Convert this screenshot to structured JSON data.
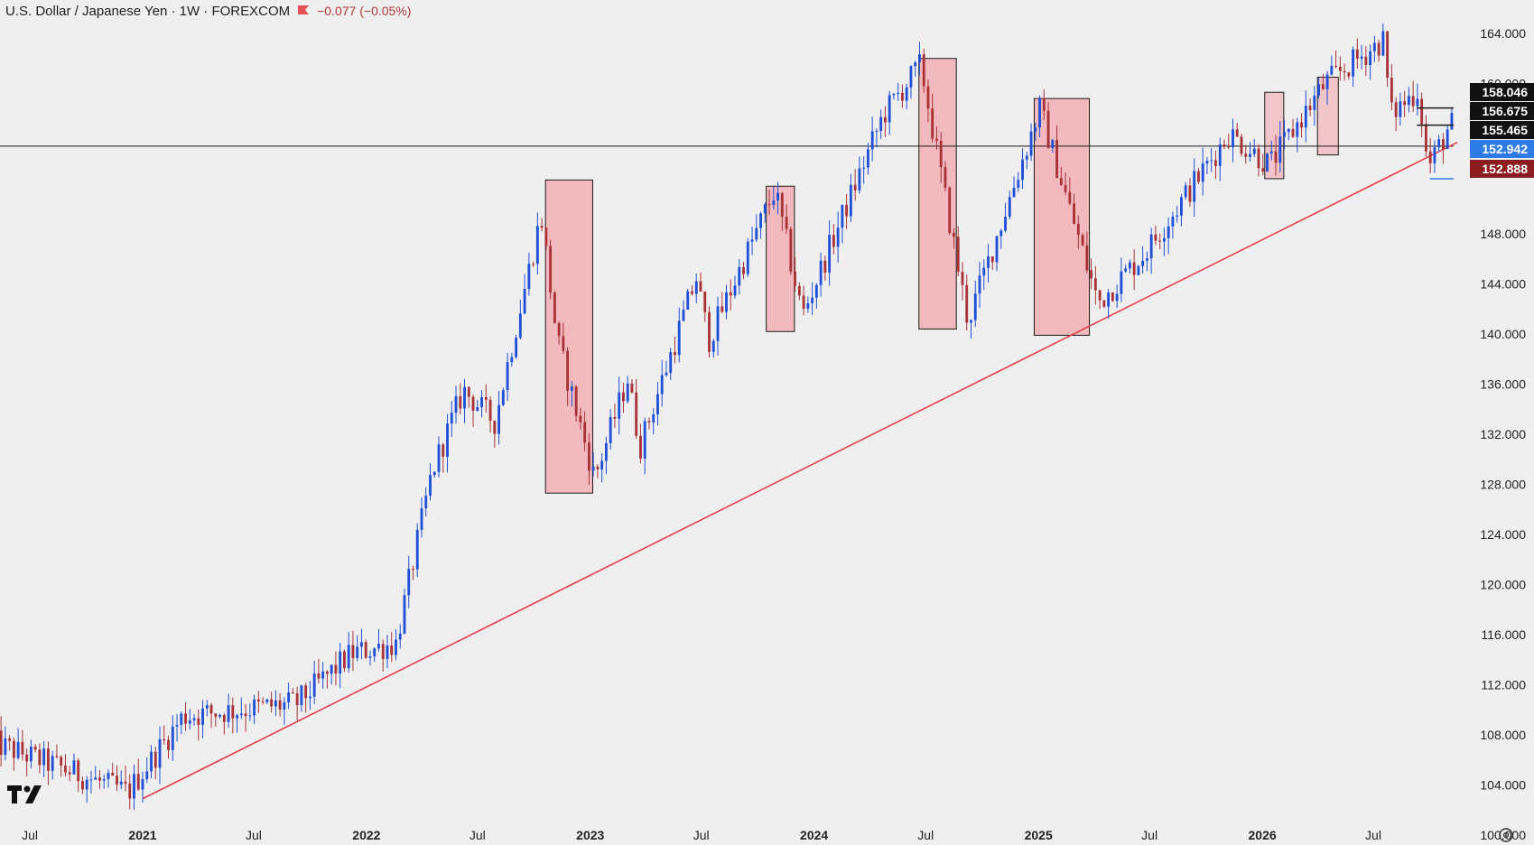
{
  "header": {
    "title": "U.S. Dollar / Japanese Yen · 1W · FOREXCOM",
    "change": "−0.077 (−0.05%)",
    "flag_icon": "red-flag-icon"
  },
  "colors": {
    "background": "#efefef",
    "bull": "#1e4fd6",
    "bear": "#a83236",
    "trendline": "#e8404a",
    "zone_fill": "#f2b4b9",
    "zone_stroke": "#1a1a1a",
    "hline": "#1a1a1a",
    "tag_black": "#111111",
    "tag_blue": "#2f7be6",
    "tag_red": "#8a1c1f"
  },
  "chart_data": {
    "type": "candlestick",
    "symbol": "USD/JPY",
    "interval": "1W",
    "source": "FOREXCOM",
    "ylim": [
      99.0,
      165.3
    ],
    "y_ticks": [
      "164.000",
      "160.000",
      "148.000",
      "144.000",
      "140.000",
      "136.000",
      "132.000",
      "128.000",
      "124.000",
      "120.000",
      "116.000",
      "112.000",
      "108.000",
      "104.000",
      "100.000"
    ],
    "x_labels": [
      {
        "label": "Jul",
        "date": "2020-07-01",
        "bold": false
      },
      {
        "label": "2021",
        "date": "2021-01-01",
        "bold": true
      },
      {
        "label": "Jul",
        "date": "2021-07-01",
        "bold": false
      },
      {
        "label": "2022",
        "date": "2022-01-01",
        "bold": true
      },
      {
        "label": "Jul",
        "date": "2022-07-01",
        "bold": false
      },
      {
        "label": "2023",
        "date": "2023-01-01",
        "bold": true
      },
      {
        "label": "Jul",
        "date": "2023-07-01",
        "bold": false
      },
      {
        "label": "2024",
        "date": "2024-01-01",
        "bold": true
      },
      {
        "label": "Jul",
        "date": "2024-07-01",
        "bold": false
      },
      {
        "label": "2025",
        "date": "2025-01-01",
        "bold": true
      },
      {
        "label": "Jul",
        "date": "2025-07-01",
        "bold": false
      },
      {
        "label": "2026",
        "date": "2026-01-01",
        "bold": true
      },
      {
        "label": "Jul",
        "date": "2026-07-01",
        "bold": false
      }
    ],
    "price_tags": [
      {
        "value": 158.046,
        "label": "158.046",
        "style": "black"
      },
      {
        "value": 156.675,
        "label": "156.675",
        "style": "black"
      },
      {
        "value": 155.465,
        "label": "155.465",
        "style": "black"
      },
      {
        "value": 152.942,
        "label": "152.942",
        "style": "blue"
      },
      {
        "value": 152.888,
        "label": "152.888",
        "style": "red"
      }
    ],
    "horizontal_line": {
      "value": 155.0
    },
    "trendline": {
      "from": {
        "date": "2021-01-01",
        "value": 102.9
      },
      "to": {
        "date": "2026-11-15",
        "value": 155.3
      }
    },
    "zones": [
      {
        "from": "2022-10-20",
        "to": "2023-01-05",
        "high": 152.3,
        "low": 127.3
      },
      {
        "from": "2023-10-15",
        "to": "2023-11-30",
        "high": 151.8,
        "low": 140.2
      },
      {
        "from": "2024-06-20",
        "to": "2024-08-20",
        "high": 162.0,
        "low": 140.4
      },
      {
        "from": "2024-12-25",
        "to": "2025-03-25",
        "high": 158.8,
        "low": 139.9
      },
      {
        "from": "2026-01-05",
        "to": "2026-02-05",
        "high": 159.3,
        "low": 152.4
      },
      {
        "from": "2026-04-01",
        "to": "2026-05-05",
        "high": 160.5,
        "low": 154.3
      }
    ],
    "small_hlines": [
      {
        "from": "2026-09-10",
        "to": "2026-11-20",
        "value": 158.046
      },
      {
        "from": "2026-09-10",
        "to": "2026-11-20",
        "value": 156.675
      },
      {
        "from": "2026-10-01",
        "to": "2026-11-20",
        "value": 152.4,
        "color": "blue"
      }
    ],
    "anchors": [
      {
        "date": "2020-05-01",
        "value": 107.5
      },
      {
        "date": "2020-12-15",
        "value": 103.4
      },
      {
        "date": "2021-03-15",
        "value": 109.5
      },
      {
        "date": "2021-09-15",
        "value": 110.5
      },
      {
        "date": "2021-12-15",
        "value": 114.5
      },
      {
        "date": "2022-02-25",
        "value": 115.3
      },
      {
        "date": "2022-04-25",
        "value": 129.0
      },
      {
        "date": "2022-06-15",
        "value": 135.5
      },
      {
        "date": "2022-08-05",
        "value": 133.0
      },
      {
        "date": "2022-10-20",
        "value": 149.5
      },
      {
        "date": "2022-11-15",
        "value": 139.5
      },
      {
        "date": "2023-01-15",
        "value": 128.5
      },
      {
        "date": "2023-03-10",
        "value": 136.5
      },
      {
        "date": "2023-03-30",
        "value": 131.0
      },
      {
        "date": "2023-06-30",
        "value": 144.5
      },
      {
        "date": "2023-07-20",
        "value": 139.5
      },
      {
        "date": "2023-11-05",
        "value": 151.5
      },
      {
        "date": "2023-12-20",
        "value": 141.5
      },
      {
        "date": "2024-04-30",
        "value": 157.5
      },
      {
        "date": "2024-06-30",
        "value": 161.5
      },
      {
        "date": "2024-09-15",
        "value": 141.0
      },
      {
        "date": "2025-01-10",
        "value": 158.0
      },
      {
        "date": "2025-04-15",
        "value": 142.5
      },
      {
        "date": "2025-07-01",
        "value": 146.5
      },
      {
        "date": "2025-11-15",
        "value": 156.0
      },
      {
        "date": "2026-01-20",
        "value": 153.5
      },
      {
        "date": "2026-04-20",
        "value": 160.0
      },
      {
        "date": "2026-07-25",
        "value": 163.5
      },
      {
        "date": "2026-08-05",
        "value": 157.5
      },
      {
        "date": "2026-09-20",
        "value": 159.5
      },
      {
        "date": "2026-10-05",
        "value": 153.2
      },
      {
        "date": "2026-11-10",
        "value": 156.7
      }
    ]
  }
}
